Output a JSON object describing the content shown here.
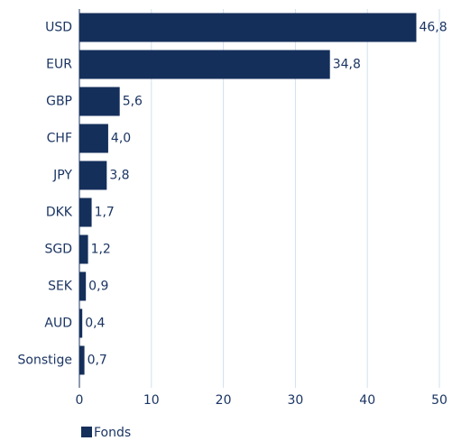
{
  "chart_data": {
    "type": "barh",
    "categories": [
      "USD",
      "EUR",
      "GBP",
      "CHF",
      "JPY",
      "DKK",
      "SGD",
      "SEK",
      "AUD",
      "Sonstige"
    ],
    "series": [
      {
        "name": "Fonds",
        "color": "#152f5b",
        "values": [
          46.8,
          34.8,
          5.6,
          4.0,
          3.8,
          1.7,
          1.2,
          0.9,
          0.4,
          0.7
        ],
        "value_labels": [
          "46,8",
          "34,8",
          "5,6",
          "4,0",
          "3,8",
          "1,7",
          "1,2",
          "0,9",
          "0,4",
          "0,7"
        ]
      }
    ],
    "xlim": [
      0,
      50
    ],
    "xticks": [
      0,
      10,
      20,
      30,
      40,
      50
    ],
    "grid": true,
    "legend": "bottom-left"
  }
}
